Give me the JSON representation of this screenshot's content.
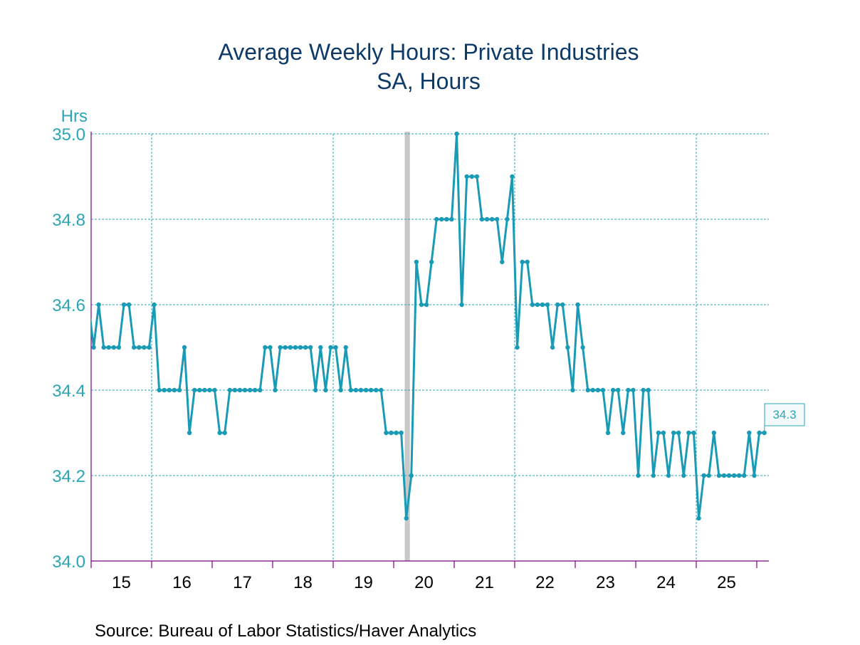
{
  "chart_data": {
    "type": "line",
    "title": "Average Weekly Hours: Private Industries",
    "subtitle": "SA, Hours",
    "ylabel": "Hrs",
    "xlabel": "",
    "source": "Source:  Bureau of Labor Statistics/Haver Analytics",
    "ylim": [
      34.0,
      35.0
    ],
    "yticks": [
      "34.0",
      "34.2",
      "34.4",
      "34.6",
      "34.8",
      "35.0"
    ],
    "ytick_values": [
      34.0,
      34.2,
      34.4,
      34.6,
      34.8,
      35.0
    ],
    "xlim": [
      "2015-01",
      "2026-03"
    ],
    "x_year_ticks": [
      2015,
      2016,
      2017,
      2018,
      2019,
      2020,
      2021,
      2022,
      2023,
      2024,
      2025,
      2026
    ],
    "x_year_labels": [
      "15",
      "16",
      "17",
      "18",
      "19",
      "20",
      "21",
      "22",
      "23",
      "24",
      "25"
    ],
    "vertical_gridline_years": [
      2016,
      2019,
      2022,
      2025
    ],
    "grid": true,
    "frequency": "monthly",
    "start": "2014-12",
    "recession": {
      "start": "2020-02",
      "end": "2020-04"
    },
    "last_value_label": "34.3",
    "colors": {
      "line": "#1a9bb5",
      "title": "#0d3a66",
      "axis": "#800080",
      "grid": "#2aa6b8",
      "recession": "#c8c8c8",
      "label_box_fill": "#f4f9fa",
      "label_box_border": "#2aa6b8"
    },
    "series": [
      {
        "name": "Average Weekly Hours: Private Industries",
        "values": [
          34.6,
          34.5,
          34.6,
          34.5,
          34.5,
          34.5,
          34.5,
          34.6,
          34.6,
          34.5,
          34.5,
          34.5,
          34.5,
          34.6,
          34.4,
          34.4,
          34.4,
          34.4,
          34.4,
          34.5,
          34.3,
          34.4,
          34.4,
          34.4,
          34.4,
          34.4,
          34.3,
          34.3,
          34.4,
          34.4,
          34.4,
          34.4,
          34.4,
          34.4,
          34.4,
          34.5,
          34.5,
          34.4,
          34.5,
          34.5,
          34.5,
          34.5,
          34.5,
          34.5,
          34.5,
          34.4,
          34.5,
          34.4,
          34.5,
          34.5,
          34.4,
          34.5,
          34.4,
          34.4,
          34.4,
          34.4,
          34.4,
          34.4,
          34.4,
          34.3,
          34.3,
          34.3,
          34.3,
          34.1,
          34.2,
          34.7,
          34.6,
          34.6,
          34.7,
          34.8,
          34.8,
          34.8,
          34.8,
          35.0,
          34.6,
          34.9,
          34.9,
          34.9,
          34.8,
          34.8,
          34.8,
          34.8,
          34.7,
          34.8,
          34.9,
          34.5,
          34.7,
          34.7,
          34.6,
          34.6,
          34.6,
          34.6,
          34.5,
          34.6,
          34.6,
          34.5,
          34.4,
          34.6,
          34.5,
          34.4,
          34.4,
          34.4,
          34.4,
          34.3,
          34.4,
          34.4,
          34.3,
          34.4,
          34.4,
          34.2,
          34.4,
          34.4,
          34.2,
          34.3,
          34.3,
          34.2,
          34.3,
          34.3,
          34.2,
          34.3,
          34.3,
          34.1,
          34.2,
          34.2,
          34.3,
          34.2,
          34.2,
          34.2,
          34.2,
          34.2,
          34.2,
          34.3,
          34.2,
          34.3,
          34.3
        ]
      }
    ]
  }
}
